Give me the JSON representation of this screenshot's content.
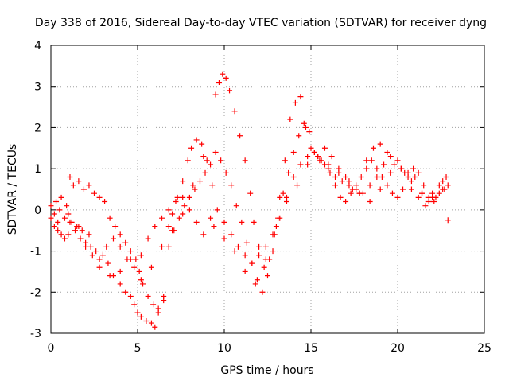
{
  "chart_data": {
    "type": "scatter",
    "title": "Day 338 of 2016, Sidereal Day-to-day VTEC variation (SDTVAR) for receiver dyng",
    "xlabel": "GPS time / hours",
    "ylabel": "SDTVAR / TECUs",
    "xlim": [
      0,
      25
    ],
    "ylim": [
      -3,
      4
    ],
    "xticks": [
      0,
      5,
      10,
      15,
      20,
      25
    ],
    "yticks": [
      -3,
      -2,
      -1,
      0,
      1,
      2,
      3,
      4
    ],
    "grid": true,
    "marker": "plus",
    "color": "#ff0000",
    "series": [
      {
        "x": [
          0.0,
          0.2,
          0.4,
          0.6,
          0.8,
          1.0,
          1.2,
          1.5,
          1.8,
          2.0,
          2.3,
          2.6,
          3.0,
          3.3,
          3.6,
          4.0,
          4.3,
          4.6,
          4.8,
          5.0,
          5.2,
          5.5,
          5.8,
          6.0,
          6.2,
          6.5,
          6.8,
          7.0,
          7.3,
          7.6,
          7.9,
          8.1,
          8.4,
          8.7,
          9.0,
          9.3,
          9.5,
          9.7,
          9.9,
          10.1,
          10.3,
          10.6,
          10.9,
          11.2,
          11.5,
          11.7,
          12.0,
          12.3,
          12.6,
          12.9,
          13.2,
          13.5,
          13.8,
          14.1,
          14.4,
          14.7,
          15.0,
          15.4,
          15.8,
          16.2,
          16.6,
          17.0,
          17.4,
          17.8,
          18.2,
          18.6,
          19.0,
          19.4,
          19.8,
          20.2,
          20.6,
          21.0,
          21.4,
          21.8,
          22.2,
          22.6,
          22.9
        ],
        "y": [
          -0.2,
          -0.4,
          -0.5,
          -0.6,
          -0.7,
          -0.6,
          -0.3,
          -0.4,
          -0.5,
          -0.8,
          -0.9,
          -1.0,
          -1.1,
          -1.3,
          -1.6,
          -1.8,
          -2.0,
          -2.1,
          -2.3,
          -2.5,
          -2.6,
          -2.7,
          -2.75,
          -2.85,
          -2.5,
          -2.1,
          -0.4,
          -0.1,
          0.3,
          0.7,
          1.2,
          1.5,
          1.7,
          1.6,
          1.2,
          0.6,
          2.8,
          3.1,
          3.3,
          3.2,
          2.9,
          2.4,
          1.8,
          1.2,
          0.4,
          -0.3,
          -0.9,
          -1.4,
          -1.2,
          -0.6,
          0.3,
          1.2,
          2.2,
          2.6,
          2.75,
          2.0,
          1.5,
          1.3,
          1.5,
          1.3,
          1.0,
          0.8,
          0.5,
          0.4,
          1.2,
          1.5,
          1.6,
          1.4,
          1.1,
          1.0,
          0.9,
          0.8,
          0.4,
          0.2,
          0.3,
          0.7,
          0.6
        ]
      },
      {
        "x": [
          0.0,
          0.3,
          0.6,
          0.9,
          1.1,
          1.3,
          1.6,
          1.9,
          2.2,
          2.5,
          2.8,
          3.1,
          3.4,
          3.7,
          4.0,
          4.3,
          4.6,
          4.9,
          5.1,
          5.3,
          5.6,
          5.9,
          6.2,
          6.5,
          6.8,
          7.1,
          7.4,
          7.7,
          8.0,
          8.3,
          8.6,
          8.9,
          9.2,
          9.5,
          9.8,
          10.1,
          10.4,
          10.7,
          11.0,
          11.3,
          11.6,
          11.9,
          12.2,
          12.5,
          12.8,
          13.1,
          13.4,
          13.7,
          14.0,
          14.3,
          14.6,
          14.9,
          15.2,
          15.5,
          15.8,
          16.1,
          16.4,
          16.7,
          17.0,
          17.3,
          17.6,
          17.9,
          18.2,
          18.5,
          18.8,
          19.1,
          19.4,
          19.7,
          20.0,
          20.3,
          20.6,
          20.9,
          21.2,
          21.5,
          21.8,
          22.1,
          22.4,
          22.7
        ],
        "y": [
          0.1,
          0.2,
          0.3,
          0.1,
          0.8,
          0.6,
          0.7,
          0.5,
          0.6,
          0.4,
          0.3,
          0.2,
          -0.2,
          -0.4,
          -0.6,
          -0.8,
          -1.0,
          -1.2,
          -1.5,
          -1.8,
          -2.1,
          -2.3,
          -2.4,
          -2.2,
          -0.9,
          -0.5,
          -0.2,
          0.1,
          0.3,
          0.5,
          0.7,
          0.9,
          1.1,
          1.4,
          1.2,
          0.9,
          0.6,
          0.1,
          -0.3,
          -0.8,
          -1.3,
          -1.7,
          -2.0,
          -1.6,
          -1.0,
          -0.2,
          0.4,
          0.9,
          1.4,
          1.8,
          2.1,
          1.9,
          1.4,
          1.2,
          1.1,
          0.9,
          0.6,
          0.3,
          0.2,
          0.4,
          0.6,
          0.8,
          1.0,
          1.2,
          1.0,
          0.8,
          0.6,
          0.4,
          0.3,
          0.5,
          0.8,
          1.0,
          0.9,
          0.6,
          0.3,
          0.2,
          0.4,
          0.5
        ]
      },
      {
        "x": [
          0.2,
          0.5,
          0.8,
          1.1,
          1.4,
          1.7,
          2.0,
          2.4,
          2.8,
          3.2,
          3.6,
          4.0,
          4.4,
          4.8,
          5.2,
          5.6,
          6.0,
          6.4,
          6.8,
          7.2,
          7.6,
          8.0,
          8.4,
          8.8,
          9.2,
          9.6,
          10.0,
          10.4,
          10.8,
          11.2,
          11.6,
          12.0,
          12.4,
          12.8,
          13.2,
          13.6,
          14.0,
          14.4,
          14.8,
          15.2,
          15.6,
          16.0,
          16.4,
          16.8,
          17.2,
          17.6,
          18.0,
          18.4,
          18.8,
          19.2,
          19.6,
          20.0,
          20.4,
          20.8,
          21.2,
          21.6,
          22.0,
          22.4,
          22.8
        ],
        "y": [
          -0.1,
          0.0,
          -0.2,
          -0.3,
          -0.5,
          -0.7,
          -0.9,
          -1.1,
          -1.2,
          -0.9,
          -0.7,
          -0.9,
          -1.2,
          -1.4,
          -1.1,
          -0.7,
          -0.4,
          -0.2,
          0.0,
          0.2,
          0.3,
          0.0,
          -0.3,
          -0.6,
          -0.2,
          0.0,
          -0.3,
          -0.6,
          -0.9,
          -1.1,
          -1.3,
          -1.1,
          -0.9,
          -0.6,
          -0.2,
          0.3,
          0.8,
          1.1,
          1.3,
          1.4,
          1.2,
          1.0,
          0.8,
          0.7,
          0.6,
          0.5,
          0.4,
          0.6,
          0.8,
          1.1,
          1.3,
          1.2,
          0.9,
          0.5,
          0.3,
          0.1,
          0.4,
          0.6,
          0.8
        ]
      },
      {
        "x": [
          0.4,
          1.0,
          1.6,
          2.2,
          2.8,
          3.4,
          4.0,
          4.6,
          5.2,
          5.8,
          6.4,
          7.0,
          7.6,
          8.2,
          8.8,
          9.4,
          10.0,
          10.6,
          11.2,
          11.8,
          12.4,
          13.0,
          13.6,
          14.2,
          14.8,
          15.4,
          16.0,
          16.6,
          17.2,
          17.8,
          18.4,
          19.0,
          19.6,
          20.2,
          20.8,
          21.4,
          22.0,
          22.6
        ],
        "y": [
          -0.3,
          -0.1,
          -0.4,
          -0.6,
          -1.4,
          -1.6,
          -1.5,
          -1.2,
          -1.7,
          -1.4,
          -0.9,
          -0.5,
          -0.1,
          0.6,
          1.3,
          -0.4,
          -0.7,
          -1.0,
          -1.5,
          -1.8,
          -1.2,
          -0.4,
          0.2,
          0.6,
          1.1,
          1.3,
          1.1,
          0.9,
          0.7,
          0.4,
          0.2,
          0.5,
          0.9,
          1.0,
          0.7,
          0.4,
          0.3,
          0.5
        ]
      },
      {
        "x": [
          22.9
        ],
        "y": [
          -0.25
        ]
      }
    ]
  }
}
